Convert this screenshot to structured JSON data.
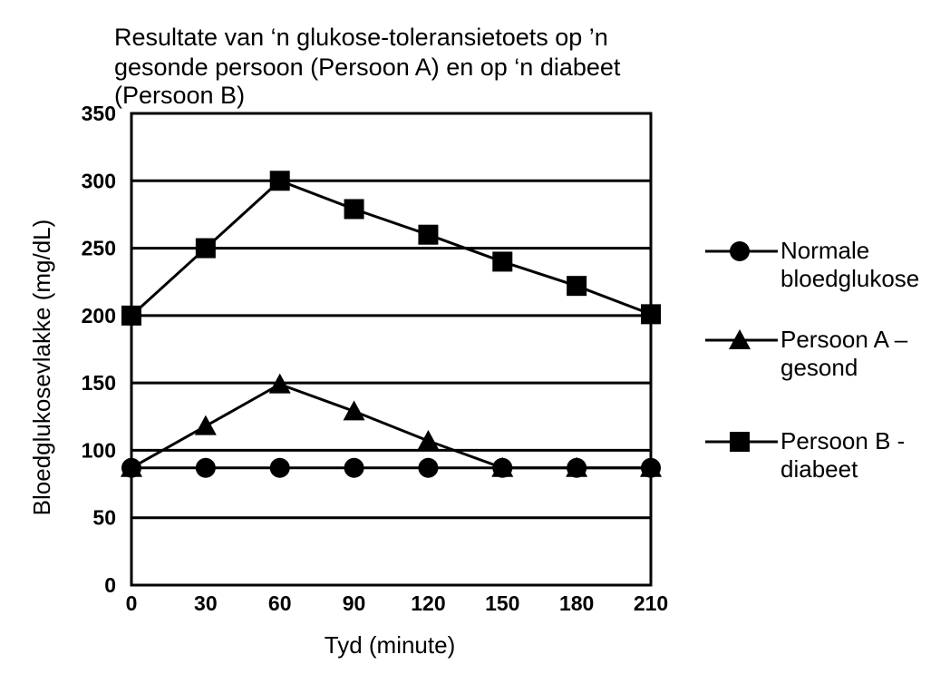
{
  "chart_data": {
    "type": "line",
    "title_lines": [
      "Resultate van ‘n glukose-toleransietoets op ’n",
      "gesonde persoon (Persoon A) en op ‘n diabeet",
      "(Persoon B)"
    ],
    "xlabel": "Tyd (minute)",
    "ylabel": "Bloedglukosevlakke (mg/dL)",
    "x": [
      0,
      30,
      60,
      90,
      120,
      150,
      180,
      210
    ],
    "x_tick_labels": [
      "0",
      "30",
      "60",
      "90",
      "120",
      "150",
      "180",
      "210"
    ],
    "y_tick_labels": [
      "0",
      "50",
      "100",
      "150",
      "200",
      "250",
      "300",
      "350"
    ],
    "xlim": [
      0,
      210
    ],
    "ylim": [
      0,
      350
    ],
    "grid": "horizontal",
    "legend_position": "right",
    "series": [
      {
        "label_lines": [
          "Normale",
          "bloedglukose"
        ],
        "marker": "circle",
        "values": [
          87,
          87,
          87,
          87,
          87,
          87,
          87,
          87
        ]
      },
      {
        "label_lines": [
          "Persoon A –",
          "gesond"
        ],
        "marker": "triangle",
        "values": [
          87,
          118,
          149,
          129,
          107,
          87,
          87,
          87
        ]
      },
      {
        "label_lines": [
          "Persoon B -",
          "diabeet"
        ],
        "marker": "square",
        "values": [
          200,
          250,
          300,
          279,
          260,
          240,
          222,
          201
        ]
      }
    ]
  }
}
